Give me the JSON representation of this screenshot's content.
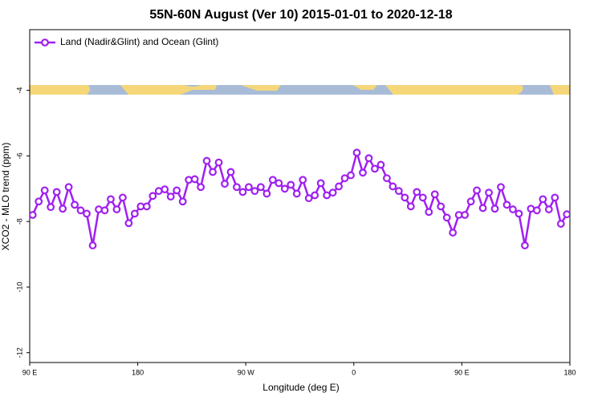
{
  "chart_data": {
    "type": "line",
    "title": "55N-60N August (Ver 10)   2015-01-01 to 2020-12-18",
    "x_label": "Longitude (deg E)",
    "y_label": "XCO2 - MLO trend (ppm)",
    "x": [
      92.5,
      97.5,
      102.5,
      107.5,
      112.5,
      117.5,
      122.5,
      127.5,
      132.5,
      137.5,
      142.5,
      147.5,
      152.5,
      157.5,
      162.5,
      167.5,
      172.5,
      177.5,
      182.5,
      187.5,
      192.5,
      197.5,
      202.5,
      207.5,
      212.5,
      217.5,
      222.5,
      227.5,
      232.5,
      237.5,
      242.5,
      247.5,
      252.5,
      257.5,
      262.5,
      267.5,
      272.5,
      277.5,
      282.5,
      287.5,
      292.5,
      297.5,
      302.5,
      307.5,
      312.5,
      317.5,
      322.5,
      327.5,
      332.5,
      337.5,
      342.5,
      347.5,
      352.5,
      357.5,
      362.5,
      367.5,
      372.5,
      377.5,
      382.5,
      387.5,
      392.5,
      397.5,
      402.5,
      407.5,
      412.5,
      417.5,
      422.5,
      427.5,
      432.5,
      437.5,
      442.5,
      447.5,
      452.5,
      457.5,
      462.5,
      467.5,
      472.5,
      477.5,
      482.5,
      487.5,
      492.5,
      497.5,
      502.5,
      507.5,
      512.5,
      517.5,
      522.5,
      527.5,
      532.5,
      537.5
    ],
    "series": [
      {
        "name": "Land (Nadir&Glint) and Ocean (Glint)",
        "color": "#a020f0",
        "values": [
          -7.8,
          -7.39,
          -7.05,
          -7.56,
          -7.1,
          -7.61,
          -6.95,
          -7.49,
          -7.66,
          -7.76,
          -8.73,
          -7.63,
          -7.66,
          -7.32,
          -7.63,
          -7.27,
          -8.05,
          -7.76,
          -7.54,
          -7.54,
          -7.22,
          -7.07,
          -7.02,
          -7.24,
          -7.05,
          -7.39,
          -6.73,
          -6.71,
          -6.95,
          -6.15,
          -6.49,
          -6.2,
          -6.85,
          -6.49,
          -6.95,
          -7.1,
          -6.95,
          -7.07,
          -6.95,
          -7.15,
          -6.73,
          -6.83,
          -7.0,
          -6.88,
          -7.15,
          -6.73,
          -7.29,
          -7.2,
          -6.83,
          -7.2,
          -7.12,
          -6.93,
          -6.68,
          -6.59,
          -5.9,
          -6.51,
          -6.07,
          -6.39,
          -6.27,
          -6.68,
          -6.93,
          -7.07,
          -7.27,
          -7.54,
          -7.1,
          -7.27,
          -7.71,
          -7.17,
          -7.54,
          -7.88,
          -8.34,
          -7.8,
          -7.8,
          -7.39,
          -7.05,
          -7.59,
          -7.12,
          -7.61,
          -6.95,
          -7.49,
          -7.63,
          -7.76,
          -8.73,
          -7.61,
          -7.66,
          -7.32,
          -7.63,
          -7.27,
          -8.07,
          -7.78
        ]
      }
    ],
    "xlim": [
      90,
      540
    ],
    "xticks": [
      {
        "value": 90,
        "label": "90 E"
      },
      {
        "value": 180,
        "label": "180"
      },
      {
        "value": 270,
        "label": "90 W"
      },
      {
        "value": 360,
        "label": "0"
      },
      {
        "value": 450,
        "label": "90 E"
      },
      {
        "value": 540,
        "label": "180"
      }
    ],
    "ylim": [
      -12.3,
      -2.15
    ],
    "yticks": [
      -4,
      -6,
      -8,
      -10,
      -12
    ],
    "legend_position": "top-left"
  }
}
